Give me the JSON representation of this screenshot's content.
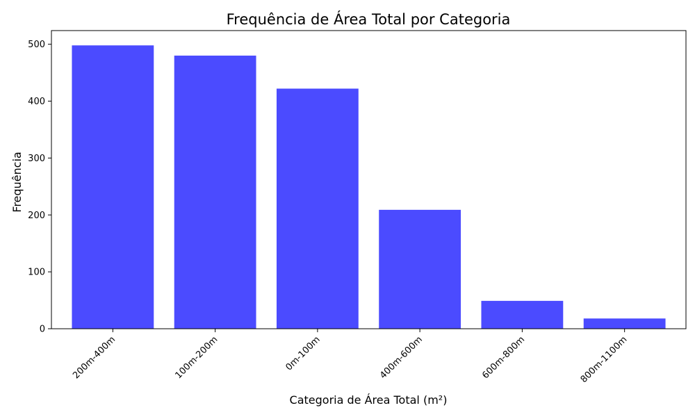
{
  "chart_data": {
    "type": "bar",
    "title": "Frequência de Área Total por Categoria",
    "xlabel": "Categoria de Área Total (m²)",
    "ylabel": "Frequência",
    "categories": [
      "200m-400m",
      "100m-200m",
      "0m-100m",
      "400m-600m",
      "600m-800m",
      "800m-1100m"
    ],
    "values": [
      498,
      480,
      422,
      209,
      49,
      18
    ],
    "ylim": [
      0,
      524
    ],
    "yticks": [
      0,
      100,
      200,
      300,
      400,
      500
    ],
    "grid": false,
    "legend": "none",
    "bar_color": "#4b4bff"
  }
}
